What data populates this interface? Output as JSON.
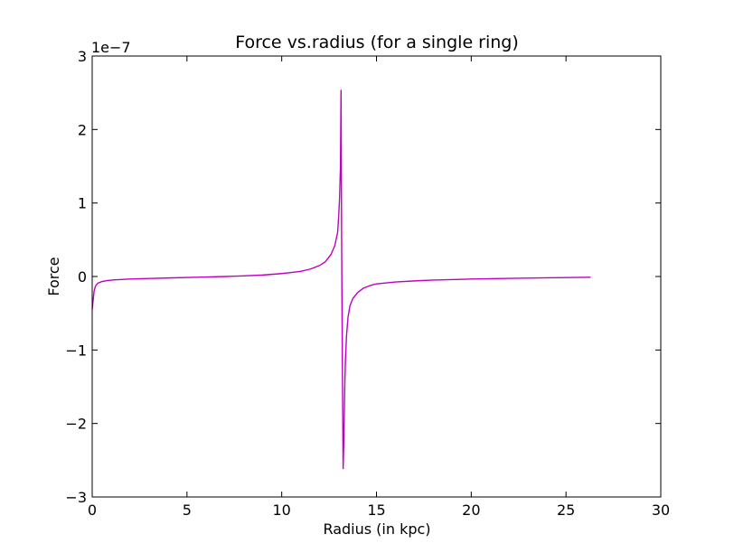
{
  "chart_data": {
    "type": "line",
    "title": "Force vs.radius (for a single ring)",
    "xlabel": "Radius (in kpc)",
    "ylabel": "Force",
    "y_multiplier_label": "1e−7",
    "xlim": [
      0,
      30
    ],
    "ylim": [
      -3,
      3
    ],
    "x_ticks": [
      0,
      5,
      10,
      15,
      20,
      25,
      30
    ],
    "y_ticks": [
      -3,
      -2,
      -1,
      0,
      1,
      2,
      3
    ],
    "x_tick_labels": [
      "0",
      "5",
      "10",
      "15",
      "20",
      "25",
      "30"
    ],
    "y_tick_labels": [
      "−3",
      "−2",
      "−1",
      "0",
      "1",
      "2",
      "3"
    ],
    "grid": false,
    "series": [
      {
        "color": "#bf00bf",
        "x": [
          0.0,
          0.05,
          0.1,
          0.15,
          0.2,
          0.3,
          0.5,
          0.8,
          1.2,
          2,
          3,
          4,
          5,
          6,
          7,
          8,
          9,
          10,
          10.5,
          11,
          11.5,
          12,
          12.3,
          12.6,
          12.8,
          12.95,
          13.0,
          13.05,
          13.1,
          13.13,
          13.16,
          13.2,
          13.24,
          13.28,
          13.32,
          13.36,
          13.42,
          13.5,
          13.6,
          13.75,
          14.0,
          14.3,
          14.7,
          15,
          16,
          17,
          18,
          20,
          22,
          24,
          26.3
        ],
        "y": [
          -0.45,
          -0.32,
          -0.2,
          -0.15,
          -0.12,
          -0.09,
          -0.07,
          -0.055,
          -0.045,
          -0.035,
          -0.027,
          -0.02,
          -0.013,
          -0.007,
          0.0,
          0.008,
          0.02,
          0.04,
          0.055,
          0.07,
          0.1,
          0.15,
          0.2,
          0.3,
          0.42,
          0.6,
          0.8,
          1.05,
          1.5,
          2.54,
          0.5,
          -1.2,
          -2.62,
          -2.2,
          -1.55,
          -1.15,
          -0.8,
          -0.55,
          -0.4,
          -0.3,
          -0.22,
          -0.16,
          -0.12,
          -0.1,
          -0.075,
          -0.06,
          -0.048,
          -0.035,
          -0.025,
          -0.018,
          -0.01
        ]
      }
    ]
  }
}
